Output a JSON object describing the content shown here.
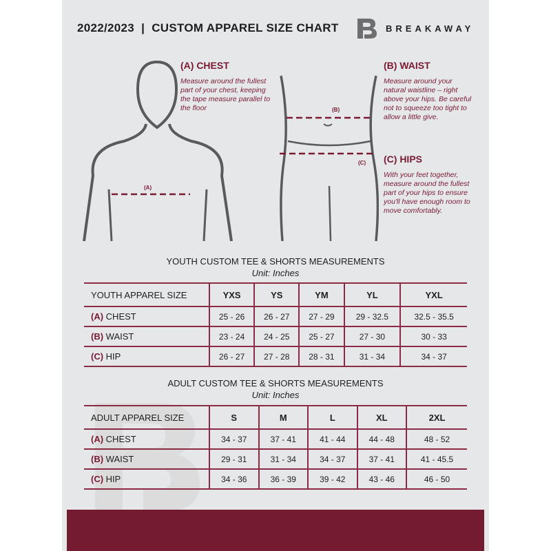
{
  "header": {
    "title": "2022/2023  |  CUSTOM APPAREL SIZE CHART",
    "brand": "BREAKAWAY",
    "logo_letter": "B"
  },
  "guides": {
    "chest": {
      "title": "(A) CHEST",
      "text": "Measure around the fullest part of your chest, keeping the tape measure parallel to the floor",
      "tag": "(A)"
    },
    "waist": {
      "title": "(B) WAIST",
      "text": "Measure around your natural waistline – right above your hips. Be careful not to squeeze too tight to allow a little give.",
      "tag": "(B)"
    },
    "hips": {
      "title": "(C) HIPS",
      "text": "With your feet together, measure around the fullest part of your hips to ensure you'll have enough room to move comfortably.",
      "tag": "(C)"
    }
  },
  "youth": {
    "title": "YOUTH CUSTOM TEE & SHORTS MEASUREMENTS",
    "unit": "Unit: Inches",
    "header": "YOUTH APPAREL SIZE",
    "sizes": [
      "YXS",
      "YS",
      "YM",
      "YL",
      "YXL"
    ],
    "rows": [
      {
        "letter": "(A)",
        "label": "CHEST",
        "values": [
          "25 - 26",
          "26 - 27",
          "27 - 29",
          "29 - 32.5",
          "32.5 - 35.5"
        ]
      },
      {
        "letter": "(B)",
        "label": "WAIST",
        "values": [
          "23 - 24",
          "24 - 25",
          "25 - 27",
          "27 - 30",
          "30 - 33"
        ]
      },
      {
        "letter": "(C)",
        "label": "HIP",
        "values": [
          "26 - 27",
          "27 - 28",
          "28 - 31",
          "31 - 34",
          "34 - 37"
        ]
      }
    ]
  },
  "adult": {
    "title": "ADULT CUSTOM TEE & SHORTS MEASUREMENTS",
    "unit": "Unit: Inches",
    "header": "ADULT APPAREL SIZE",
    "sizes": [
      "S",
      "M",
      "L",
      "XL",
      "2XL"
    ],
    "rows": [
      {
        "letter": "(A)",
        "label": "CHEST",
        "values": [
          "34 - 37",
          "37 - 41",
          "41 - 44",
          "44 - 48",
          "48 - 52"
        ]
      },
      {
        "letter": "(B)",
        "label": "WAIST",
        "values": [
          "29 - 31",
          "31 - 34",
          "34 - 37",
          "37 - 41",
          "41 - 45.5"
        ]
      },
      {
        "letter": "(C)",
        "label": "HIP",
        "values": [
          "34 - 36",
          "36 - 39",
          "39 - 42",
          "43 - 46",
          "46 - 50"
        ]
      }
    ]
  },
  "colors": {
    "accent": "#741b32",
    "background": "#e6e7e8"
  }
}
